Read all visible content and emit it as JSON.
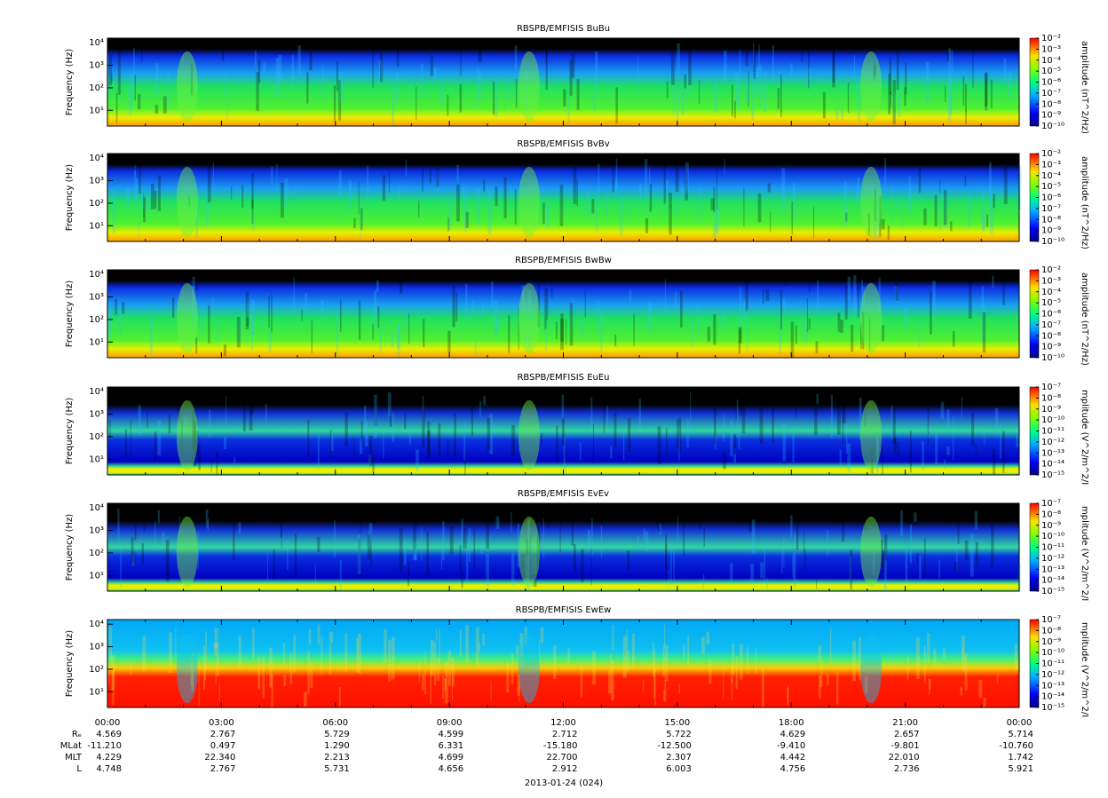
{
  "chart_data": [
    {
      "type": "spectrogram",
      "title": "RBSPB/EMFISIS  BuBu",
      "ylabel": "Frequency (Hz)",
      "yscale": "log",
      "ylim": [
        2,
        16000
      ],
      "yticks": [
        {
          "value": 10,
          "label": "10¹"
        },
        {
          "value": 100,
          "label": "10²"
        },
        {
          "value": 1000,
          "label": "10³"
        },
        {
          "value": 10000,
          "label": "10⁴"
        }
      ],
      "colorbar": {
        "label": "amplitude (nT^2/Hz)",
        "scale": "log",
        "lim": [
          1e-10,
          0.01
        ],
        "ticks": [
          {
            "value": 0.01,
            "label": "10⁻²"
          },
          {
            "value": 0.001,
            "label": "10⁻³"
          },
          {
            "value": 0.0001,
            "label": "10⁻⁴"
          },
          {
            "value": 1e-05,
            "label": "10⁻⁵"
          },
          {
            "value": 1e-06,
            "label": "10⁻⁶"
          },
          {
            "value": 1e-07,
            "label": "10⁻⁷"
          },
          {
            "value": 1e-08,
            "label": "10⁻⁸"
          },
          {
            "value": 1e-09,
            "label": "10⁻⁹"
          },
          {
            "value": 1e-10,
            "label": "10⁻¹⁰"
          }
        ]
      }
    },
    {
      "type": "spectrogram",
      "title": "RBSPB/EMFISIS  BvBv",
      "ylabel": "Frequency (Hz)",
      "yscale": "log",
      "ylim": [
        2,
        16000
      ],
      "yticks": [
        {
          "value": 10,
          "label": "10¹"
        },
        {
          "value": 100,
          "label": "10²"
        },
        {
          "value": 1000,
          "label": "10³"
        },
        {
          "value": 10000,
          "label": "10⁴"
        }
      ],
      "colorbar": {
        "label": "amplitude (nT^2/Hz)",
        "scale": "log",
        "lim": [
          1e-10,
          0.01
        ],
        "ticks": [
          {
            "value": 0.01,
            "label": "10⁻²"
          },
          {
            "value": 0.001,
            "label": "10⁻³"
          },
          {
            "value": 0.0001,
            "label": "10⁻⁴"
          },
          {
            "value": 1e-05,
            "label": "10⁻⁵"
          },
          {
            "value": 1e-06,
            "label": "10⁻⁶"
          },
          {
            "value": 1e-07,
            "label": "10⁻⁷"
          },
          {
            "value": 1e-08,
            "label": "10⁻⁸"
          },
          {
            "value": 1e-09,
            "label": "10⁻⁹"
          },
          {
            "value": 1e-10,
            "label": "10⁻¹⁰"
          }
        ]
      }
    },
    {
      "type": "spectrogram",
      "title": "RBSPB/EMFISIS  BwBw",
      "ylabel": "Frequency (Hz)",
      "yscale": "log",
      "ylim": [
        2,
        16000
      ],
      "yticks": [
        {
          "value": 10,
          "label": "10¹"
        },
        {
          "value": 100,
          "label": "10²"
        },
        {
          "value": 1000,
          "label": "10³"
        },
        {
          "value": 10000,
          "label": "10⁴"
        }
      ],
      "colorbar": {
        "label": "amplitude (nT^2/Hz)",
        "scale": "log",
        "lim": [
          1e-10,
          0.01
        ],
        "ticks": [
          {
            "value": 0.01,
            "label": "10⁻²"
          },
          {
            "value": 0.001,
            "label": "10⁻³"
          },
          {
            "value": 0.0001,
            "label": "10⁻⁴"
          },
          {
            "value": 1e-05,
            "label": "10⁻⁵"
          },
          {
            "value": 1e-06,
            "label": "10⁻⁶"
          },
          {
            "value": 1e-07,
            "label": "10⁻⁷"
          },
          {
            "value": 1e-08,
            "label": "10⁻⁸"
          },
          {
            "value": 1e-09,
            "label": "10⁻⁹"
          },
          {
            "value": 1e-10,
            "label": "10⁻¹⁰"
          }
        ]
      }
    },
    {
      "type": "spectrogram",
      "title": "RBSPB/EMFISIS  EuEu",
      "ylabel": "Frequency (Hz)",
      "yscale": "log",
      "ylim": [
        2,
        16000
      ],
      "yticks": [
        {
          "value": 10,
          "label": "10¹"
        },
        {
          "value": 100,
          "label": "10²"
        },
        {
          "value": 1000,
          "label": "10³"
        },
        {
          "value": 10000,
          "label": "10⁴"
        }
      ],
      "colorbar": {
        "label": "mplitude (V^2/m^2/I",
        "scale": "log",
        "lim": [
          1e-15,
          1e-07
        ],
        "ticks": [
          {
            "value": 1e-07,
            "label": "10⁻⁷"
          },
          {
            "value": 1e-08,
            "label": "10⁻⁸"
          },
          {
            "value": 1e-09,
            "label": "10⁻⁹"
          },
          {
            "value": 1e-10,
            "label": "10⁻¹⁰"
          },
          {
            "value": 1e-11,
            "label": "10⁻¹¹"
          },
          {
            "value": 1e-12,
            "label": "10⁻¹²"
          },
          {
            "value": 1e-13,
            "label": "10⁻¹³"
          },
          {
            "value": 1e-14,
            "label": "10⁻¹⁴"
          },
          {
            "value": 1e-15,
            "label": "10⁻¹⁵"
          }
        ]
      }
    },
    {
      "type": "spectrogram",
      "title": "RBSPB/EMFISIS  EvEv",
      "ylabel": "Frequency (Hz)",
      "yscale": "log",
      "ylim": [
        2,
        16000
      ],
      "yticks": [
        {
          "value": 10,
          "label": "10¹"
        },
        {
          "value": 100,
          "label": "10²"
        },
        {
          "value": 1000,
          "label": "10³"
        },
        {
          "value": 10000,
          "label": "10⁴"
        }
      ],
      "colorbar": {
        "label": "mplitude (V^2/m^2/I",
        "scale": "log",
        "lim": [
          1e-15,
          1e-07
        ],
        "ticks": [
          {
            "value": 1e-07,
            "label": "10⁻⁷"
          },
          {
            "value": 1e-08,
            "label": "10⁻⁸"
          },
          {
            "value": 1e-09,
            "label": "10⁻⁹"
          },
          {
            "value": 1e-10,
            "label": "10⁻¹⁰"
          },
          {
            "value": 1e-11,
            "label": "10⁻¹¹"
          },
          {
            "value": 1e-12,
            "label": "10⁻¹²"
          },
          {
            "value": 1e-13,
            "label": "10⁻¹³"
          },
          {
            "value": 1e-14,
            "label": "10⁻¹⁴"
          },
          {
            "value": 1e-15,
            "label": "10⁻¹⁵"
          }
        ]
      }
    },
    {
      "type": "spectrogram",
      "title": "RBSPB/EMFISIS  EwEw",
      "ylabel": "Frequency (Hz)",
      "yscale": "log",
      "ylim": [
        2,
        16000
      ],
      "yticks": [
        {
          "value": 10,
          "label": "10¹"
        },
        {
          "value": 100,
          "label": "10²"
        },
        {
          "value": 1000,
          "label": "10³"
        },
        {
          "value": 10000,
          "label": "10⁴"
        }
      ],
      "colorbar": {
        "label": "mplitude (V^2/m^2/I",
        "scale": "log",
        "lim": [
          1e-15,
          1e-07
        ],
        "ticks": [
          {
            "value": 1e-07,
            "label": "10⁻⁷"
          },
          {
            "value": 1e-08,
            "label": "10⁻⁸"
          },
          {
            "value": 1e-09,
            "label": "10⁻⁹"
          },
          {
            "value": 1e-10,
            "label": "10⁻¹⁰"
          },
          {
            "value": 1e-11,
            "label": "10⁻¹¹"
          },
          {
            "value": 1e-12,
            "label": "10⁻¹²"
          },
          {
            "value": 1e-13,
            "label": "10⁻¹³"
          },
          {
            "value": 1e-14,
            "label": "10⁻¹⁴"
          },
          {
            "value": 1e-15,
            "label": "10⁻¹⁵"
          }
        ]
      }
    }
  ],
  "x_axis": {
    "categories": [
      "00:00",
      "03:00",
      "06:00",
      "09:00",
      "12:00",
      "15:00",
      "18:00",
      "21:00",
      "00:00"
    ],
    "date": "2013-01-24 (024)"
  },
  "ephemeris": {
    "rows": [
      [
        "Rₑ",
        "4.569",
        "2.767",
        "5.729",
        "4.599",
        "2.712",
        "5.722",
        "4.629",
        "2.657",
        "5.714"
      ],
      [
        "MLat",
        "-11.210",
        "0.497",
        "1.290",
        "6.331",
        "-15.180",
        "-12.500",
        "-9.410",
        "-9.801",
        "-10.760"
      ],
      [
        "MLT",
        "4.229",
        "22.340",
        "2.213",
        "4.699",
        "22.700",
        "2.307",
        "4.442",
        "22.010",
        "1.742"
      ],
      [
        "L",
        "4.748",
        "2.767",
        "5.731",
        "4.656",
        "2.912",
        "6.003",
        "4.756",
        "2.736",
        "5.921"
      ]
    ]
  }
}
